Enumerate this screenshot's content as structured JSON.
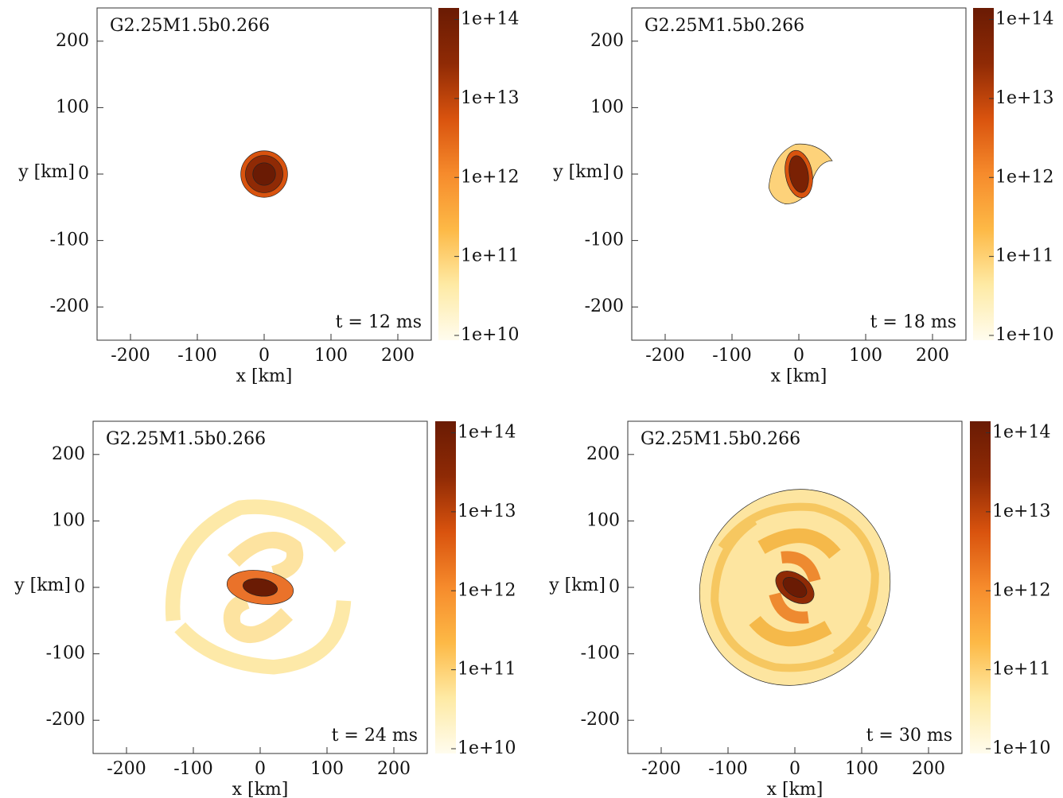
{
  "chart_data": [
    {
      "type": "density-map",
      "title": "G2.25M1.5b0.266",
      "annotation": "t = 12 ms",
      "xlabel": "x [km]",
      "ylabel": "y [km]",
      "xlim": [
        -250,
        250
      ],
      "ylim": [
        -250,
        250
      ],
      "xticks": [
        -200,
        -100,
        0,
        100,
        200
      ],
      "yticks": [
        -200,
        -100,
        0,
        100,
        200
      ],
      "colorbar": {
        "scale": "log",
        "lim": [
          8700000000,
          140000000000000
        ],
        "ticks": [
          {
            "value": 10000000000,
            "label": "1e+10"
          },
          {
            "value": 100000000000,
            "label": "1e+11"
          },
          {
            "value": 1000000000000,
            "label": "1e+12"
          },
          {
            "value": 10000000000000,
            "label": "1e+13"
          },
          {
            "value": 100000000000000,
            "label": "1e+14"
          }
        ],
        "colors": [
          "#fffcee",
          "#feeaa4",
          "#fdb946",
          "#f68b2c",
          "#d9530e",
          "#8f2a05",
          "#6a1b04"
        ]
      }
    },
    {
      "type": "density-map",
      "title": "G2.25M1.5b0.266",
      "annotation": "t = 18 ms",
      "xlabel": "x [km]",
      "ylabel": "y [km]",
      "xlim": [
        -250,
        250
      ],
      "ylim": [
        -250,
        250
      ],
      "xticks": [
        -200,
        -100,
        0,
        100,
        200
      ],
      "yticks": [
        -200,
        -100,
        0,
        100,
        200
      ],
      "colorbar": {
        "scale": "log",
        "lim": [
          8700000000,
          140000000000000
        ],
        "ticks": [
          {
            "value": 10000000000,
            "label": "1e+10"
          },
          {
            "value": 100000000000,
            "label": "1e+11"
          },
          {
            "value": 1000000000000,
            "label": "1e+12"
          },
          {
            "value": 10000000000000,
            "label": "1e+13"
          },
          {
            "value": 100000000000000,
            "label": "1e+14"
          }
        ],
        "colors": [
          "#fffcee",
          "#feeaa4",
          "#fdb946",
          "#f68b2c",
          "#d9530e",
          "#8f2a05",
          "#6a1b04"
        ]
      }
    },
    {
      "type": "density-map",
      "title": "G2.25M1.5b0.266",
      "annotation": "t = 24 ms",
      "xlabel": "x [km]",
      "ylabel": "y [km]",
      "xlim": [
        -250,
        250
      ],
      "ylim": [
        -250,
        250
      ],
      "xticks": [
        -200,
        -100,
        0,
        100,
        200
      ],
      "yticks": [
        -200,
        -100,
        0,
        100,
        200
      ],
      "colorbar": {
        "scale": "log",
        "lim": [
          8700000000,
          140000000000000
        ],
        "ticks": [
          {
            "value": 10000000000,
            "label": "1e+10"
          },
          {
            "value": 100000000000,
            "label": "1e+11"
          },
          {
            "value": 1000000000000,
            "label": "1e+12"
          },
          {
            "value": 10000000000000,
            "label": "1e+13"
          },
          {
            "value": 100000000000000,
            "label": "1e+14"
          }
        ],
        "colors": [
          "#fffcee",
          "#feeaa4",
          "#fdb946",
          "#f68b2c",
          "#d9530e",
          "#8f2a05",
          "#6a1b04"
        ]
      }
    },
    {
      "type": "density-map",
      "title": "G2.25M1.5b0.266",
      "annotation": "t = 30 ms",
      "xlabel": "x [km]",
      "ylabel": "y [km]",
      "xlim": [
        -250,
        250
      ],
      "ylim": [
        -250,
        250
      ],
      "xticks": [
        -200,
        -100,
        0,
        100,
        200
      ],
      "yticks": [
        -200,
        -100,
        0,
        100,
        200
      ],
      "colorbar": {
        "scale": "log",
        "lim": [
          8700000000,
          140000000000000
        ],
        "ticks": [
          {
            "value": 10000000000,
            "label": "1e+10"
          },
          {
            "value": 100000000000,
            "label": "1e+11"
          },
          {
            "value": 1000000000000,
            "label": "1e+12"
          },
          {
            "value": 10000000000000,
            "label": "1e+13"
          },
          {
            "value": 100000000000000,
            "label": "1e+14"
          }
        ],
        "colors": [
          "#fffcee",
          "#feeaa4",
          "#fdb946",
          "#f68b2c",
          "#d9530e",
          "#8f2a05",
          "#6a1b04"
        ]
      }
    }
  ]
}
